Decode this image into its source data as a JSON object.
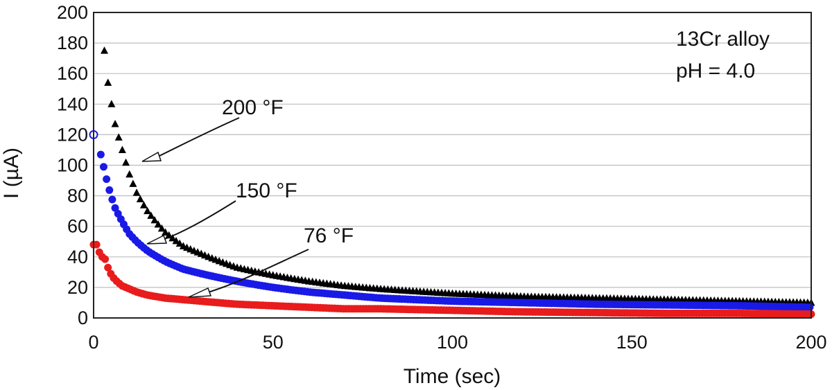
{
  "chart_data": {
    "type": "scatter",
    "title": "",
    "xlabel": "Time (sec)",
    "ylabel": "I (µA)",
    "xlim": [
      0,
      200
    ],
    "ylim": [
      0,
      200
    ],
    "x_ticks": [
      0,
      50,
      100,
      150,
      200
    ],
    "y_ticks": [
      0,
      20,
      40,
      60,
      80,
      100,
      120,
      140,
      160,
      180,
      200
    ],
    "grid": "horizontal",
    "legend": "none",
    "annotations": {
      "box_line1": "13Cr alloy",
      "box_line2": "pH = 4.0",
      "label_200": "200 °F",
      "label_150": "150 °F",
      "label_76": "76 °F"
    },
    "series": [
      {
        "name": "200 °F",
        "color": "#000000",
        "marker": "triangle",
        "x": [
          3,
          4,
          5,
          6,
          8,
          10,
          12,
          15,
          20,
          25,
          30,
          40,
          50,
          60,
          70,
          80,
          100,
          120,
          140,
          160,
          180,
          200
        ],
        "y": [
          175,
          154,
          140,
          127,
          110,
          94,
          82,
          70,
          56,
          47,
          42,
          33,
          28,
          24,
          21,
          19,
          16,
          14,
          13,
          12,
          11,
          10
        ]
      },
      {
        "name": "150 °F",
        "color": "#1a1ae6",
        "marker": "circle",
        "x": [
          2,
          3,
          4,
          5,
          6,
          8,
          10,
          12,
          15,
          20,
          25,
          30,
          40,
          50,
          60,
          70,
          80,
          100,
          120,
          140,
          160,
          180,
          200
        ],
        "y": [
          107,
          97,
          87,
          79,
          72,
          63,
          55,
          50,
          44,
          37,
          32,
          29,
          24,
          20,
          17,
          15,
          13,
          11,
          10,
          9,
          8.5,
          8,
          7
        ]
      },
      {
        "name": "76 °F",
        "color": "#e81c1c",
        "marker": "circle",
        "x": [
          0,
          1,
          2,
          3,
          4,
          5,
          6,
          8,
          10,
          12,
          15,
          20,
          25,
          30,
          40,
          50,
          60,
          70,
          80,
          100,
          120,
          140,
          160,
          180,
          200
        ],
        "y": [
          48,
          48,
          40,
          40,
          33,
          28,
          25,
          21,
          19,
          17,
          15,
          13,
          12,
          11,
          9,
          8,
          7,
          6,
          6,
          5,
          4,
          3.5,
          3,
          3,
          2.5
        ]
      }
    ],
    "first_point_open_circle": {
      "x": 0,
      "y": 120,
      "color": "#1a1ae6"
    }
  }
}
